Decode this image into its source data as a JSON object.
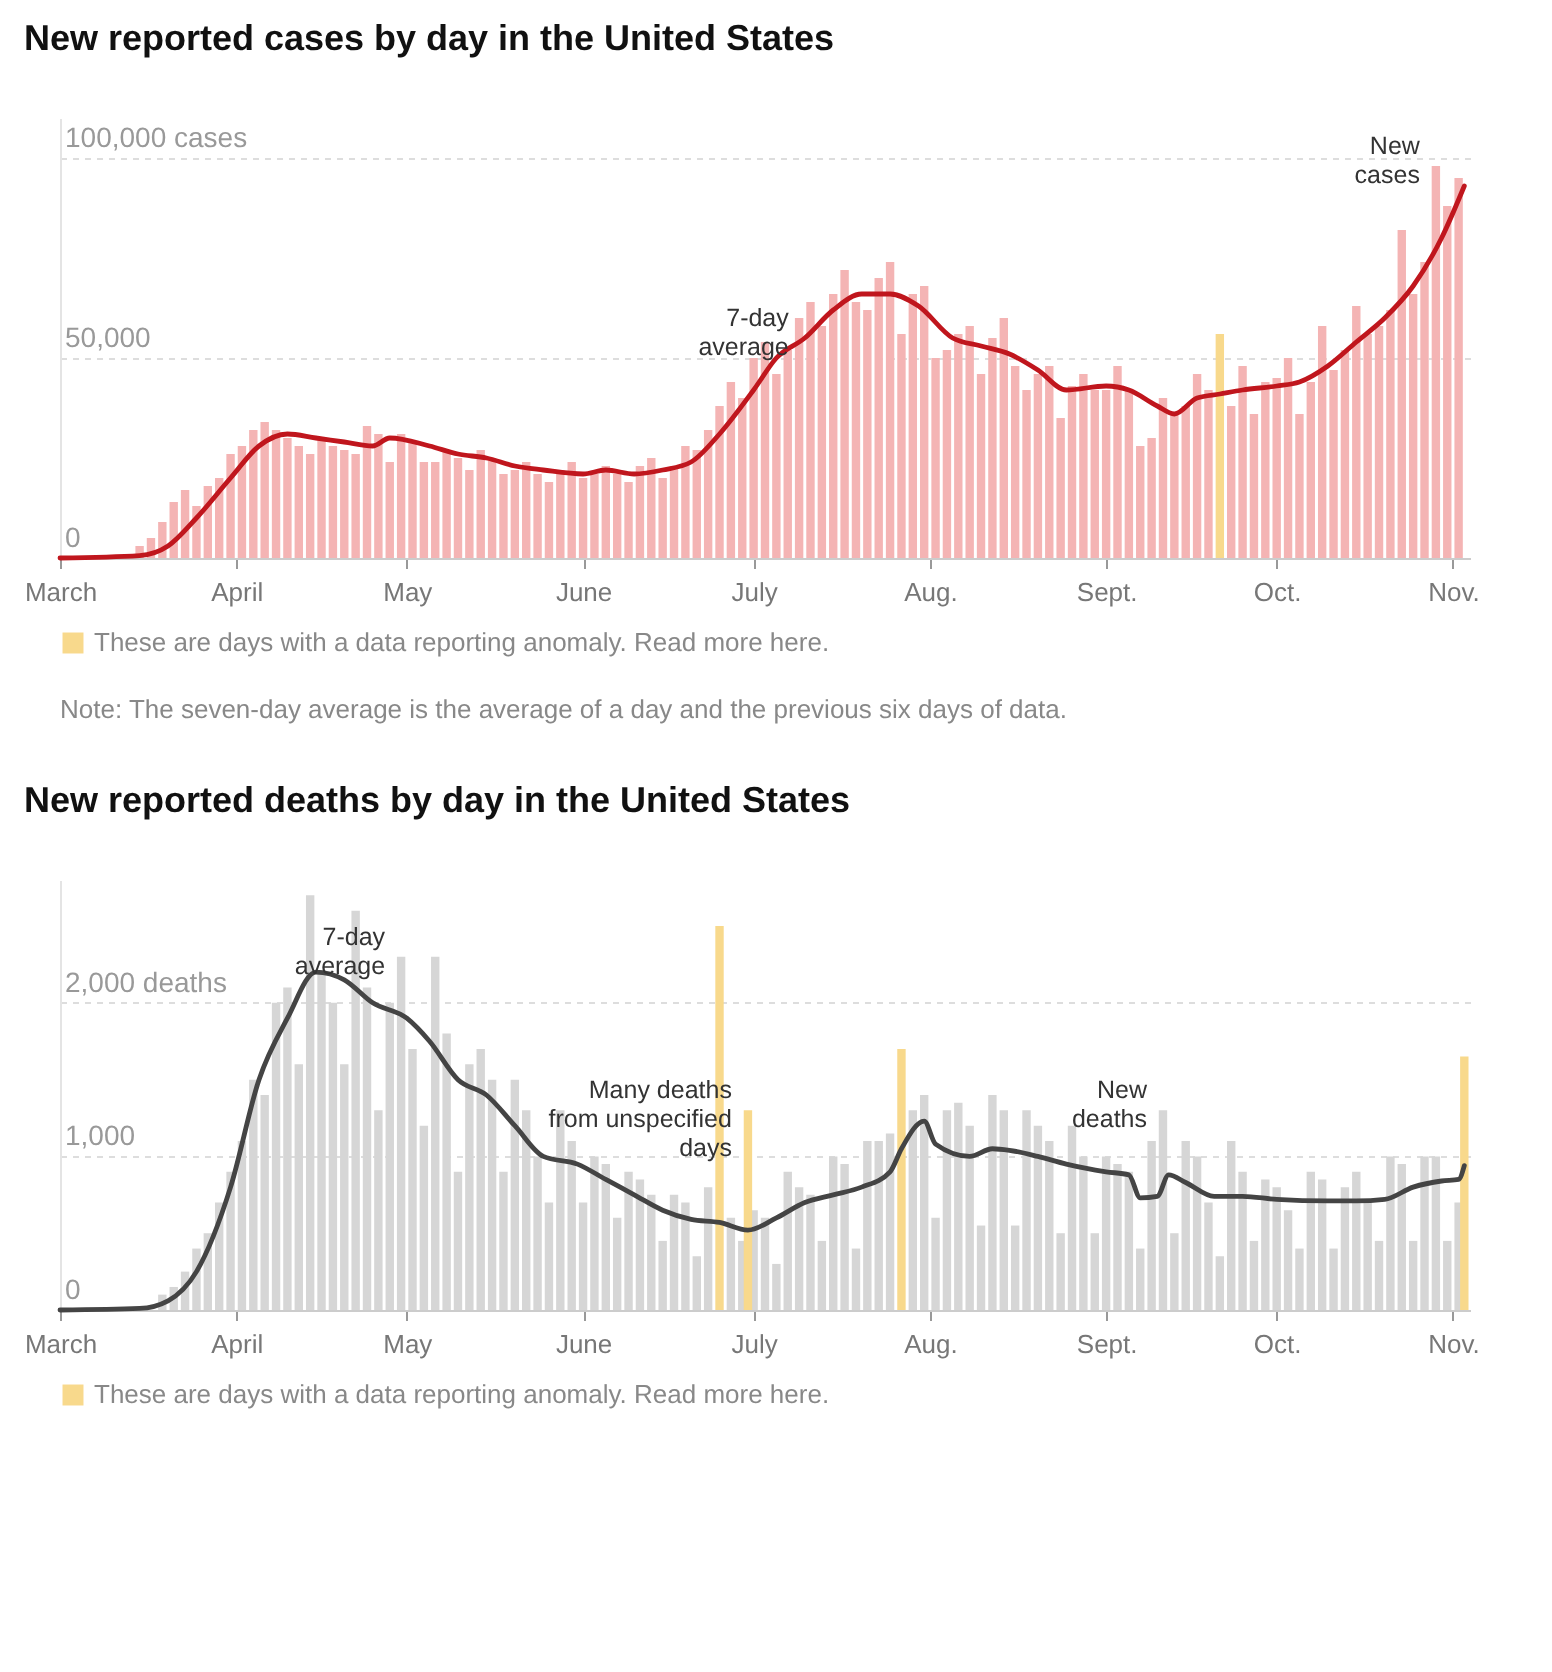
{
  "chart_data": [
    {
      "type": "bar",
      "title": "New reported cases by day in the United States",
      "x": [
        "--03-01",
        "--03-03",
        "--03-05",
        "--03-07",
        "--03-09",
        "--03-11",
        "--03-13",
        "--03-15",
        "--03-17",
        "--03-19",
        "--03-21",
        "--03-23",
        "--03-25",
        "--03-27",
        "--03-29",
        "--03-31",
        "--04-02",
        "--04-04",
        "--04-06",
        "--04-08",
        "--04-10",
        "--04-12",
        "--04-14",
        "--04-16",
        "--04-18",
        "--04-20",
        "--04-22",
        "--04-24",
        "--04-26",
        "--04-28",
        "--04-30",
        "--05-02",
        "--05-04",
        "--05-06",
        "--05-08",
        "--05-10",
        "--05-12",
        "--05-14",
        "--05-16",
        "--05-18",
        "--05-20",
        "--05-22",
        "--05-24",
        "--05-26",
        "--05-28",
        "--05-30",
        "--06-01",
        "--06-03",
        "--06-05",
        "--06-07",
        "--06-09",
        "--06-11",
        "--06-13",
        "--06-15",
        "--06-17",
        "--06-19",
        "--06-21",
        "--06-23",
        "--06-25",
        "--06-27",
        "--06-29",
        "--07-01",
        "--07-03",
        "--07-05",
        "--07-07",
        "--07-09",
        "--07-11",
        "--07-13",
        "--07-15",
        "--07-17",
        "--07-19",
        "--07-21",
        "--07-23",
        "--07-25",
        "--07-27",
        "--07-29",
        "--07-31",
        "--08-02",
        "--08-04",
        "--08-06",
        "--08-08",
        "--08-10",
        "--08-12",
        "--08-14",
        "--08-16",
        "--08-18",
        "--08-20",
        "--08-22",
        "--08-24",
        "--08-26",
        "--08-28",
        "--08-30",
        "--09-01",
        "--09-03",
        "--09-05",
        "--09-07",
        "--09-09",
        "--09-11",
        "--09-13",
        "--09-15",
        "--09-17",
        "--09-19",
        "--09-21",
        "--09-23",
        "--09-25",
        "--09-27",
        "--09-29",
        "--10-01",
        "--10-03",
        "--10-05",
        "--10-07",
        "--10-09",
        "--10-11",
        "--10-13",
        "--10-15",
        "--10-17",
        "--10-19",
        "--10-21",
        "--10-23",
        "--10-25",
        "--10-27",
        "--10-29",
        "--10-31",
        "--11-02"
      ],
      "series": [
        {
          "color": "#f4b4b4",
          "values": [
            0,
            0,
            100,
            300,
            500,
            null,
            null,
            3000,
            5000,
            9000,
            14000,
            17000,
            13000,
            18000,
            20000,
            26000,
            28000,
            32000,
            34000,
            32000,
            30000,
            28000,
            26000,
            30000,
            28000,
            27000,
            26000,
            33000,
            31000,
            24000,
            31000,
            29000,
            24000,
            24000,
            27000,
            25000,
            22000,
            27000,
            25000,
            21000,
            22000,
            24000,
            21000,
            19000,
            22000,
            24000,
            20000,
            21000,
            23000,
            21000,
            19000,
            23000,
            25000,
            20000,
            23000,
            28000,
            27000,
            32000,
            38000,
            44000,
            40000,
            50000,
            54000,
            46000,
            52000,
            60000,
            64000,
            58000,
            66000,
            72000,
            64000,
            62000,
            70000,
            74000,
            56000,
            66000,
            68000,
            50000,
            52000,
            56000,
            58000,
            46000,
            55000,
            60000,
            48000,
            42000,
            46000,
            48000,
            35000,
            43000,
            46000,
            42000,
            42000,
            48000,
            42000,
            28000,
            30000,
            40000,
            36000,
            38000,
            46000,
            42000,
            null,
            38000,
            48000,
            36000,
            44000,
            45000,
            50000,
            36000,
            44000,
            58000,
            47000,
            52000,
            63000,
            56000,
            58000,
            62000,
            82000,
            66000,
            74000,
            98000,
            88000,
            95000
          ]
        },
        {
          "name": "These are days with a data reporting anomaly. Read more here.",
          "color": "#f8d98c",
          "x": [
            "--09-21"
          ],
          "values": [
            56000
          ]
        },
        {
          "type": "line",
          "color": "#c0161d",
          "x": [
            "--03-01",
            "--03-15",
            "--03-20",
            "--03-25",
            "--03-31",
            "--04-05",
            "--04-10",
            "--04-15",
            "--04-20",
            "--04-25",
            "--04-28",
            "--05-05",
            "--05-10",
            "--05-15",
            "--05-20",
            "--05-25",
            "--06-01",
            "--06-05",
            "--06-10",
            "--06-15",
            "--06-20",
            "--06-25",
            "--07-01",
            "--07-05",
            "--07-10",
            "--07-15",
            "--07-20",
            "--07-25",
            "--07-30",
            "--08-05",
            "--08-10",
            "--08-15",
            "--08-20",
            "--08-25",
            "--09-01",
            "--09-05",
            "--09-10",
            "--09-13",
            "--09-17",
            "--09-21",
            "--09-25",
            "--10-01",
            "--10-05",
            "--10-10",
            "--10-15",
            "--10-20",
            "--10-25",
            "--10-30",
            "--11-03"
          ],
          "values": [
            0,
            600,
            3000,
            10000,
            20000,
            28000,
            31000,
            30000,
            29000,
            28000,
            30000,
            28000,
            26000,
            25000,
            23000,
            22000,
            21000,
            22000,
            21000,
            22000,
            24000,
            31000,
            42000,
            50000,
            55000,
            62000,
            66000,
            66000,
            63000,
            55000,
            53000,
            51000,
            47000,
            42000,
            43000,
            42000,
            38000,
            36000,
            40000,
            41000,
            42000,
            43000,
            44000,
            48000,
            54000,
            60000,
            68000,
            80000,
            93000
          ]
        }
      ],
      "xlim": [
        "--03-01",
        "--11-04"
      ],
      "xticks": [
        {
          "value": "--03-01",
          "label": "March"
        },
        {
          "value": "--04-01",
          "label": "April"
        },
        {
          "value": "--05-01",
          "label": "May"
        },
        {
          "value": "--06-01",
          "label": "June"
        },
        {
          "value": "--07-01",
          "label": "July"
        },
        {
          "value": "--08-01",
          "label": "Aug."
        },
        {
          "value": "--09-01",
          "label": "Sept."
        },
        {
          "value": "--10-01",
          "label": "Oct."
        },
        {
          "value": "--11-01",
          "label": "Nov."
        }
      ],
      "ylim": [
        0,
        110000
      ],
      "yticks": [
        0,
        {
          "value": 50000,
          "label": "50,000"
        },
        {
          "value": 100000,
          "label": "100,000 cases"
        }
      ],
      "grid": "y",
      "legend": "bottom",
      "annotations": [
        {
          "text": "New\ncases",
          "x": "--10-29",
          "y": 98000
        },
        {
          "text": "7-day\naverage",
          "x": "--07-10",
          "y": 55000
        },
        "Note: The seven-day average is the average of a day and the previous six days of data."
      ]
    },
    {
      "type": "bar",
      "title": "New reported deaths by day in the United States",
      "x": [
        "--03-01",
        "--03-03",
        "--03-05",
        "--03-07",
        "--03-09",
        "--03-11",
        "--03-13",
        "--03-15",
        "--03-17",
        "--03-19",
        "--03-21",
        "--03-23",
        "--03-25",
        "--03-27",
        "--03-29",
        "--03-31",
        "--04-02",
        "--04-04",
        "--04-06",
        "--04-08",
        "--04-10",
        "--04-12",
        "--04-14",
        "--04-16",
        "--04-18",
        "--04-20",
        "--04-22",
        "--04-24",
        "--04-26",
        "--04-28",
        "--04-30",
        "--05-02",
        "--05-04",
        "--05-06",
        "--05-08",
        "--05-10",
        "--05-12",
        "--05-14",
        "--05-16",
        "--05-18",
        "--05-20",
        "--05-22",
        "--05-24",
        "--05-26",
        "--05-28",
        "--05-30",
        "--06-01",
        "--06-03",
        "--06-05",
        "--06-07",
        "--06-09",
        "--06-11",
        "--06-13",
        "--06-15",
        "--06-17",
        "--06-19",
        "--06-21",
        "--06-23",
        "--06-25",
        "--06-27",
        "--06-29",
        "--07-01",
        "--07-03",
        "--07-05",
        "--07-07",
        "--07-09",
        "--07-11",
        "--07-13",
        "--07-15",
        "--07-17",
        "--07-19",
        "--07-21",
        "--07-23",
        "--07-25",
        "--07-27",
        "--07-29",
        "--07-31",
        "--08-02",
        "--08-04",
        "--08-06",
        "--08-08",
        "--08-10",
        "--08-12",
        "--08-14",
        "--08-16",
        "--08-18",
        "--08-20",
        "--08-22",
        "--08-24",
        "--08-26",
        "--08-28",
        "--08-30",
        "--09-01",
        "--09-03",
        "--09-05",
        "--09-07",
        "--09-09",
        "--09-11",
        "--09-13",
        "--09-15",
        "--09-17",
        "--09-19",
        "--09-21",
        "--09-23",
        "--09-25",
        "--09-27",
        "--09-29",
        "--10-01",
        "--10-03",
        "--10-05",
        "--10-07",
        "--10-09",
        "--10-11",
        "--10-13",
        "--10-15",
        "--10-17",
        "--10-19",
        "--10-21",
        "--10-23",
        "--10-25",
        "--10-27",
        "--10-29",
        "--10-31",
        "--11-02"
      ],
      "series": [
        {
          "color": "#d6d6d6",
          "values": [
            0,
            0,
            0,
            0,
            0,
            0,
            0,
            0,
            0,
            100,
            150,
            250,
            400,
            500,
            700,
            900,
            1100,
            1500,
            1400,
            2000,
            2100,
            1600,
            2700,
            2200,
            2000,
            1600,
            2600,
            2100,
            1300,
            2000,
            2300,
            1700,
            1200,
            2300,
            1800,
            900,
            1600,
            1700,
            1500,
            900,
            1500,
            1300,
            1000,
            700,
            1300,
            1100,
            700,
            1000,
            950,
            600,
            900,
            850,
            750,
            450,
            750,
            700,
            350,
            800,
            null,
            600,
            450,
            650,
            600,
            300,
            900,
            800,
            750,
            450,
            1000,
            950,
            400,
            1100,
            1100,
            1150,
            null,
            1300,
            1400,
            600,
            1300,
            1350,
            1200,
            550,
            1400,
            1300,
            550,
            1300,
            1200,
            1100,
            500,
            1200,
            1000,
            500,
            1000,
            950,
            900,
            400,
            1100,
            1300,
            500,
            1100,
            1000,
            700,
            350,
            1100,
            900,
            450,
            850,
            800,
            650,
            400,
            900,
            850,
            400,
            800,
            900,
            700,
            450,
            1000,
            950,
            450,
            1000,
            1000,
            450,
            700
          ]
        },
        {
          "name": "These are days with a data reporting anomaly. Read more here.",
          "color": "#f8d98c",
          "x": [
            "--06-25",
            "--06-30",
            "--07-27",
            "--11-03"
          ],
          "values": [
            2500,
            1300,
            1700,
            1650
          ]
        },
        {
          "type": "line",
          "color": "#444444",
          "x": [
            "--03-01",
            "--03-15",
            "--03-20",
            "--03-25",
            "--03-31",
            "--04-05",
            "--04-10",
            "--04-15",
            "--04-20",
            "--04-25",
            "--05-01",
            "--05-05",
            "--05-10",
            "--05-15",
            "--05-20",
            "--05-25",
            "--05-31",
            "--06-05",
            "--06-10",
            "--06-15",
            "--06-20",
            "--06-25",
            "--06-30",
            "--07-05",
            "--07-10",
            "--07-15",
            "--07-20",
            "--07-25",
            "--07-27",
            "--07-31",
            "--08-02",
            "--08-08",
            "--08-12",
            "--08-15",
            "--08-20",
            "--08-25",
            "--09-01",
            "--09-05",
            "--09-07",
            "--09-10",
            "--09-12",
            "--09-15",
            "--09-20",
            "--09-25",
            "--10-01",
            "--10-10",
            "--10-15",
            "--10-20",
            "--10-25",
            "--10-30",
            "--11-02",
            "--11-03"
          ],
          "values": [
            0,
            10,
            60,
            250,
            800,
            1500,
            1900,
            2200,
            2150,
            2000,
            1900,
            1750,
            1500,
            1400,
            1200,
            1000,
            950,
            850,
            750,
            650,
            590,
            570,
            520,
            600,
            700,
            750,
            800,
            900,
            1050,
            1230,
            1080,
            1000,
            1050,
            1040,
            1000,
            950,
            900,
            880,
            730,
            740,
            880,
            830,
            740,
            740,
            720,
            710,
            710,
            720,
            800,
            840,
            850,
            940
          ]
        }
      ],
      "xlim": [
        "--03-01",
        "--11-04"
      ],
      "xticks": [
        {
          "value": "--03-01",
          "label": "March"
        },
        {
          "value": "--04-01",
          "label": "April"
        },
        {
          "value": "--05-01",
          "label": "May"
        },
        {
          "value": "--06-01",
          "label": "June"
        },
        {
          "value": "--07-01",
          "label": "July"
        },
        {
          "value": "--08-01",
          "label": "Aug."
        },
        {
          "value": "--09-01",
          "label": "Sept."
        },
        {
          "value": "--10-01",
          "label": "Oct."
        },
        {
          "value": "--11-01",
          "label": "Nov."
        }
      ],
      "ylim": [
        0,
        2800
      ],
      "yticks": [
        0,
        {
          "value": 1000,
          "label": "1,000"
        },
        {
          "value": 2000,
          "label": "2,000 deaths"
        }
      ],
      "grid": "y",
      "legend": "bottom",
      "annotations": [
        {
          "text": "7-day\naverage",
          "x": "--04-30",
          "y": 2300
        },
        {
          "text": "Many deaths\nfrom unspecified\ndays",
          "x": "--06-30",
          "y": 1300
        },
        {
          "text": "New\ndeaths",
          "x": "--09-11",
          "y": 1300
        }
      ]
    }
  ]
}
